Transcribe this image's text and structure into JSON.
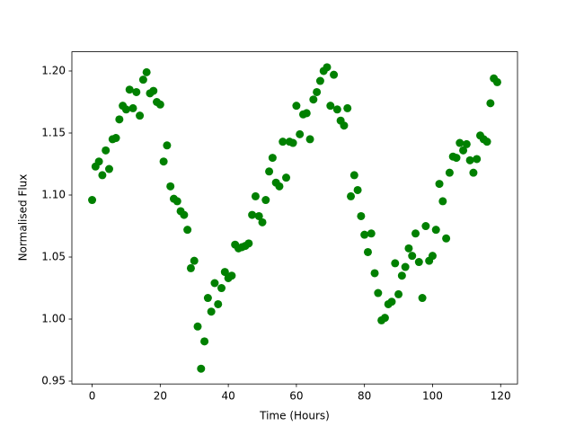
{
  "chart_data": {
    "type": "scatter",
    "xlabel": "Time (Hours)",
    "ylabel": "Normalised Flux",
    "xlim": [
      -5.95,
      124.95
    ],
    "ylim": [
      0.9477,
      1.2155
    ],
    "xticks": [
      0,
      20,
      40,
      60,
      80,
      100,
      120
    ],
    "yticks": [
      0.95,
      {
        "value": 1.0,
        "label": "1.00"
      },
      1.05,
      {
        "value": 1.1,
        "label": "1.10"
      },
      1.15,
      {
        "value": 1.2,
        "label": "1.20"
      }
    ],
    "color": "#008000",
    "x": [
      0,
      1,
      2,
      3,
      4,
      5,
      6,
      7,
      8,
      9,
      10,
      11,
      12,
      13,
      14,
      15,
      16,
      17,
      18,
      19,
      20,
      21,
      22,
      23,
      24,
      25,
      26,
      27,
      28,
      29,
      30,
      31,
      32,
      33,
      34,
      35,
      36,
      37,
      38,
      39,
      40,
      41,
      42,
      43,
      44,
      45,
      46,
      47,
      48,
      49,
      50,
      51,
      52,
      53,
      54,
      55,
      56,
      57,
      58,
      59,
      60,
      61,
      62,
      63,
      64,
      65,
      66,
      67,
      68,
      69,
      70,
      71,
      72,
      73,
      74,
      75,
      76,
      77,
      78,
      79,
      80,
      81,
      82,
      83,
      84,
      85,
      86,
      87,
      88,
      89,
      90,
      91,
      92,
      93,
      94,
      95,
      96,
      97,
      98,
      99,
      100,
      101,
      102,
      103,
      104,
      105,
      106,
      107,
      108,
      109,
      110,
      111,
      112,
      113,
      114,
      115,
      116,
      117,
      118,
      119
    ],
    "values": [
      1.096,
      1.123,
      1.127,
      1.116,
      1.136,
      1.121,
      1.145,
      1.146,
      1.161,
      1.172,
      1.169,
      1.185,
      1.17,
      1.183,
      1.164,
      1.193,
      1.199,
      1.182,
      1.184,
      1.175,
      1.173,
      1.127,
      1.14,
      1.107,
      1.097,
      1.095,
      1.087,
      1.084,
      1.072,
      1.041,
      1.047,
      0.994,
      0.96,
      0.982,
      1.017,
      1.006,
      1.029,
      1.012,
      1.025,
      1.038,
      1.033,
      1.035,
      1.06,
      1.057,
      1.058,
      1.059,
      1.061,
      1.084,
      1.099,
      1.083,
      1.078,
      1.096,
      1.119,
      1.13,
      1.11,
      1.107,
      1.143,
      1.114,
      1.143,
      1.142,
      1.172,
      1.149,
      1.165,
      1.166,
      1.145,
      1.177,
      1.183,
      1.192,
      1.2,
      1.203,
      1.172,
      1.197,
      1.169,
      1.16,
      1.156,
      1.17,
      1.099,
      1.116,
      1.104,
      1.083,
      1.068,
      1.054,
      1.069,
      1.037,
      1.021,
      0.999,
      1.001,
      1.012,
      1.014,
      1.045,
      1.02,
      1.035,
      1.042,
      1.057,
      1.051,
      1.069,
      1.046,
      1.017,
      1.075,
      1.047,
      1.051,
      1.072,
      1.109,
      1.095,
      1.065,
      1.118,
      1.131,
      1.13,
      1.142,
      1.136,
      1.141,
      1.128,
      1.118,
      1.129,
      1.148,
      1.145,
      1.143,
      1.174,
      1.194,
      1.191
    ]
  }
}
